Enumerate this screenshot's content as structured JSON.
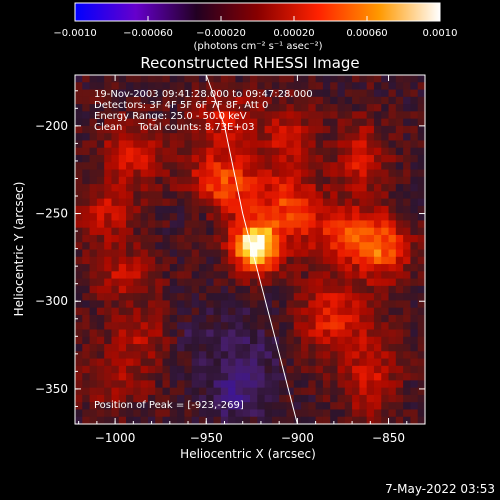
{
  "chart_data": {
    "type": "heatmap",
    "title": "Reconstructed RHESSI Image",
    "xlabel": "Heliocentric X (arcsec)",
    "ylabel": "Heliocentric Y (arcsec)",
    "xlim": [
      -1022,
      -830
    ],
    "ylim": [
      -370,
      -171
    ],
    "x_ticks": [
      -1000,
      -950,
      -900,
      -850
    ],
    "x_tick_labels": [
      "−1000",
      "−950",
      "−900",
      "−850"
    ],
    "y_ticks": [
      -200,
      -250,
      -300,
      -350
    ],
    "y_tick_labels": [
      "−200",
      "−250",
      "−300",
      "−350"
    ],
    "colorbar": {
      "range": [
        -0.001,
        0.001
      ],
      "ticks": [
        -0.001,
        -0.0006,
        -0.0002,
        0.0002,
        0.0006,
        0.001
      ],
      "tick_labels": [
        "−0.0010",
        "−0.00060",
        "−0.00020",
        "0.00020",
        "0.00060",
        "0.0010"
      ],
      "units_label": "(photons cm⁻² s⁻¹ asec⁻²)",
      "colors": [
        "#0000ff",
        "#6600cc",
        "#220022",
        "#880000",
        "#ff2200",
        "#ff9900",
        "#ffffff"
      ]
    },
    "annotations": [
      "19-Nov-2003 09:41:28.000 to 09:47:28.000",
      "Detectors: 3F 4F 5F 6F 7F 8F, Att 0",
      "Energy Range: 25.0 - 50.0 keV",
      "Clean     Total counts: 8.73E+03"
    ],
    "peak_label": "Position of Peak = [-923,-269]",
    "peak": [
      -923,
      -269
    ],
    "limb": [
      [
        -950,
        -171
      ],
      [
        -940,
        -200
      ],
      [
        -930,
        -250
      ],
      [
        -920,
        -290
      ],
      [
        -910,
        -330
      ],
      [
        -900,
        -370
      ]
    ],
    "sources": [
      {
        "x": -923,
        "y": -269,
        "amp": 1.0,
        "sx": 9,
        "sy": 10
      },
      {
        "x": -940,
        "y": -232,
        "amp": 0.5,
        "sx": 14,
        "sy": 14
      },
      {
        "x": -905,
        "y": -244,
        "amp": 0.42,
        "sx": 12,
        "sy": 14
      },
      {
        "x": -872,
        "y": -262,
        "amp": 0.45,
        "sx": 16,
        "sy": 12
      },
      {
        "x": -852,
        "y": -272,
        "amp": 0.4,
        "sx": 10,
        "sy": 12
      },
      {
        "x": -880,
        "y": -310,
        "amp": 0.38,
        "sx": 14,
        "sy": 16
      },
      {
        "x": -860,
        "y": -345,
        "amp": 0.32,
        "sx": 10,
        "sy": 16
      },
      {
        "x": -990,
        "y": -215,
        "amp": 0.35,
        "sx": 12,
        "sy": 12
      },
      {
        "x": -1005,
        "y": -250,
        "amp": 0.3,
        "sx": 12,
        "sy": 12
      },
      {
        "x": -995,
        "y": -285,
        "amp": 0.28,
        "sx": 12,
        "sy": 10
      },
      {
        "x": -985,
        "y": -320,
        "amp": 0.25,
        "sx": 14,
        "sy": 10
      },
      {
        "x": -1000,
        "y": -345,
        "amp": 0.22,
        "sx": 14,
        "sy": 10
      },
      {
        "x": -940,
        "y": -195,
        "amp": 0.3,
        "sx": 12,
        "sy": 10
      },
      {
        "x": -905,
        "y": -205,
        "amp": 0.3,
        "sx": 10,
        "sy": 12
      },
      {
        "x": -865,
        "y": -218,
        "amp": 0.34,
        "sx": 10,
        "sy": 14
      },
      {
        "x": -930,
        "y": -330,
        "amp": -0.2,
        "sx": 14,
        "sy": 16
      },
      {
        "x": -935,
        "y": -355,
        "amp": -0.25,
        "sx": 10,
        "sy": 10
      },
      {
        "x": -960,
        "y": -320,
        "amp": -0.12,
        "sx": 10,
        "sy": 10
      },
      {
        "x": -955,
        "y": -250,
        "amp": -0.1,
        "sx": 8,
        "sy": 8
      }
    ]
  },
  "timestamp": "7-May-2022 03:53"
}
